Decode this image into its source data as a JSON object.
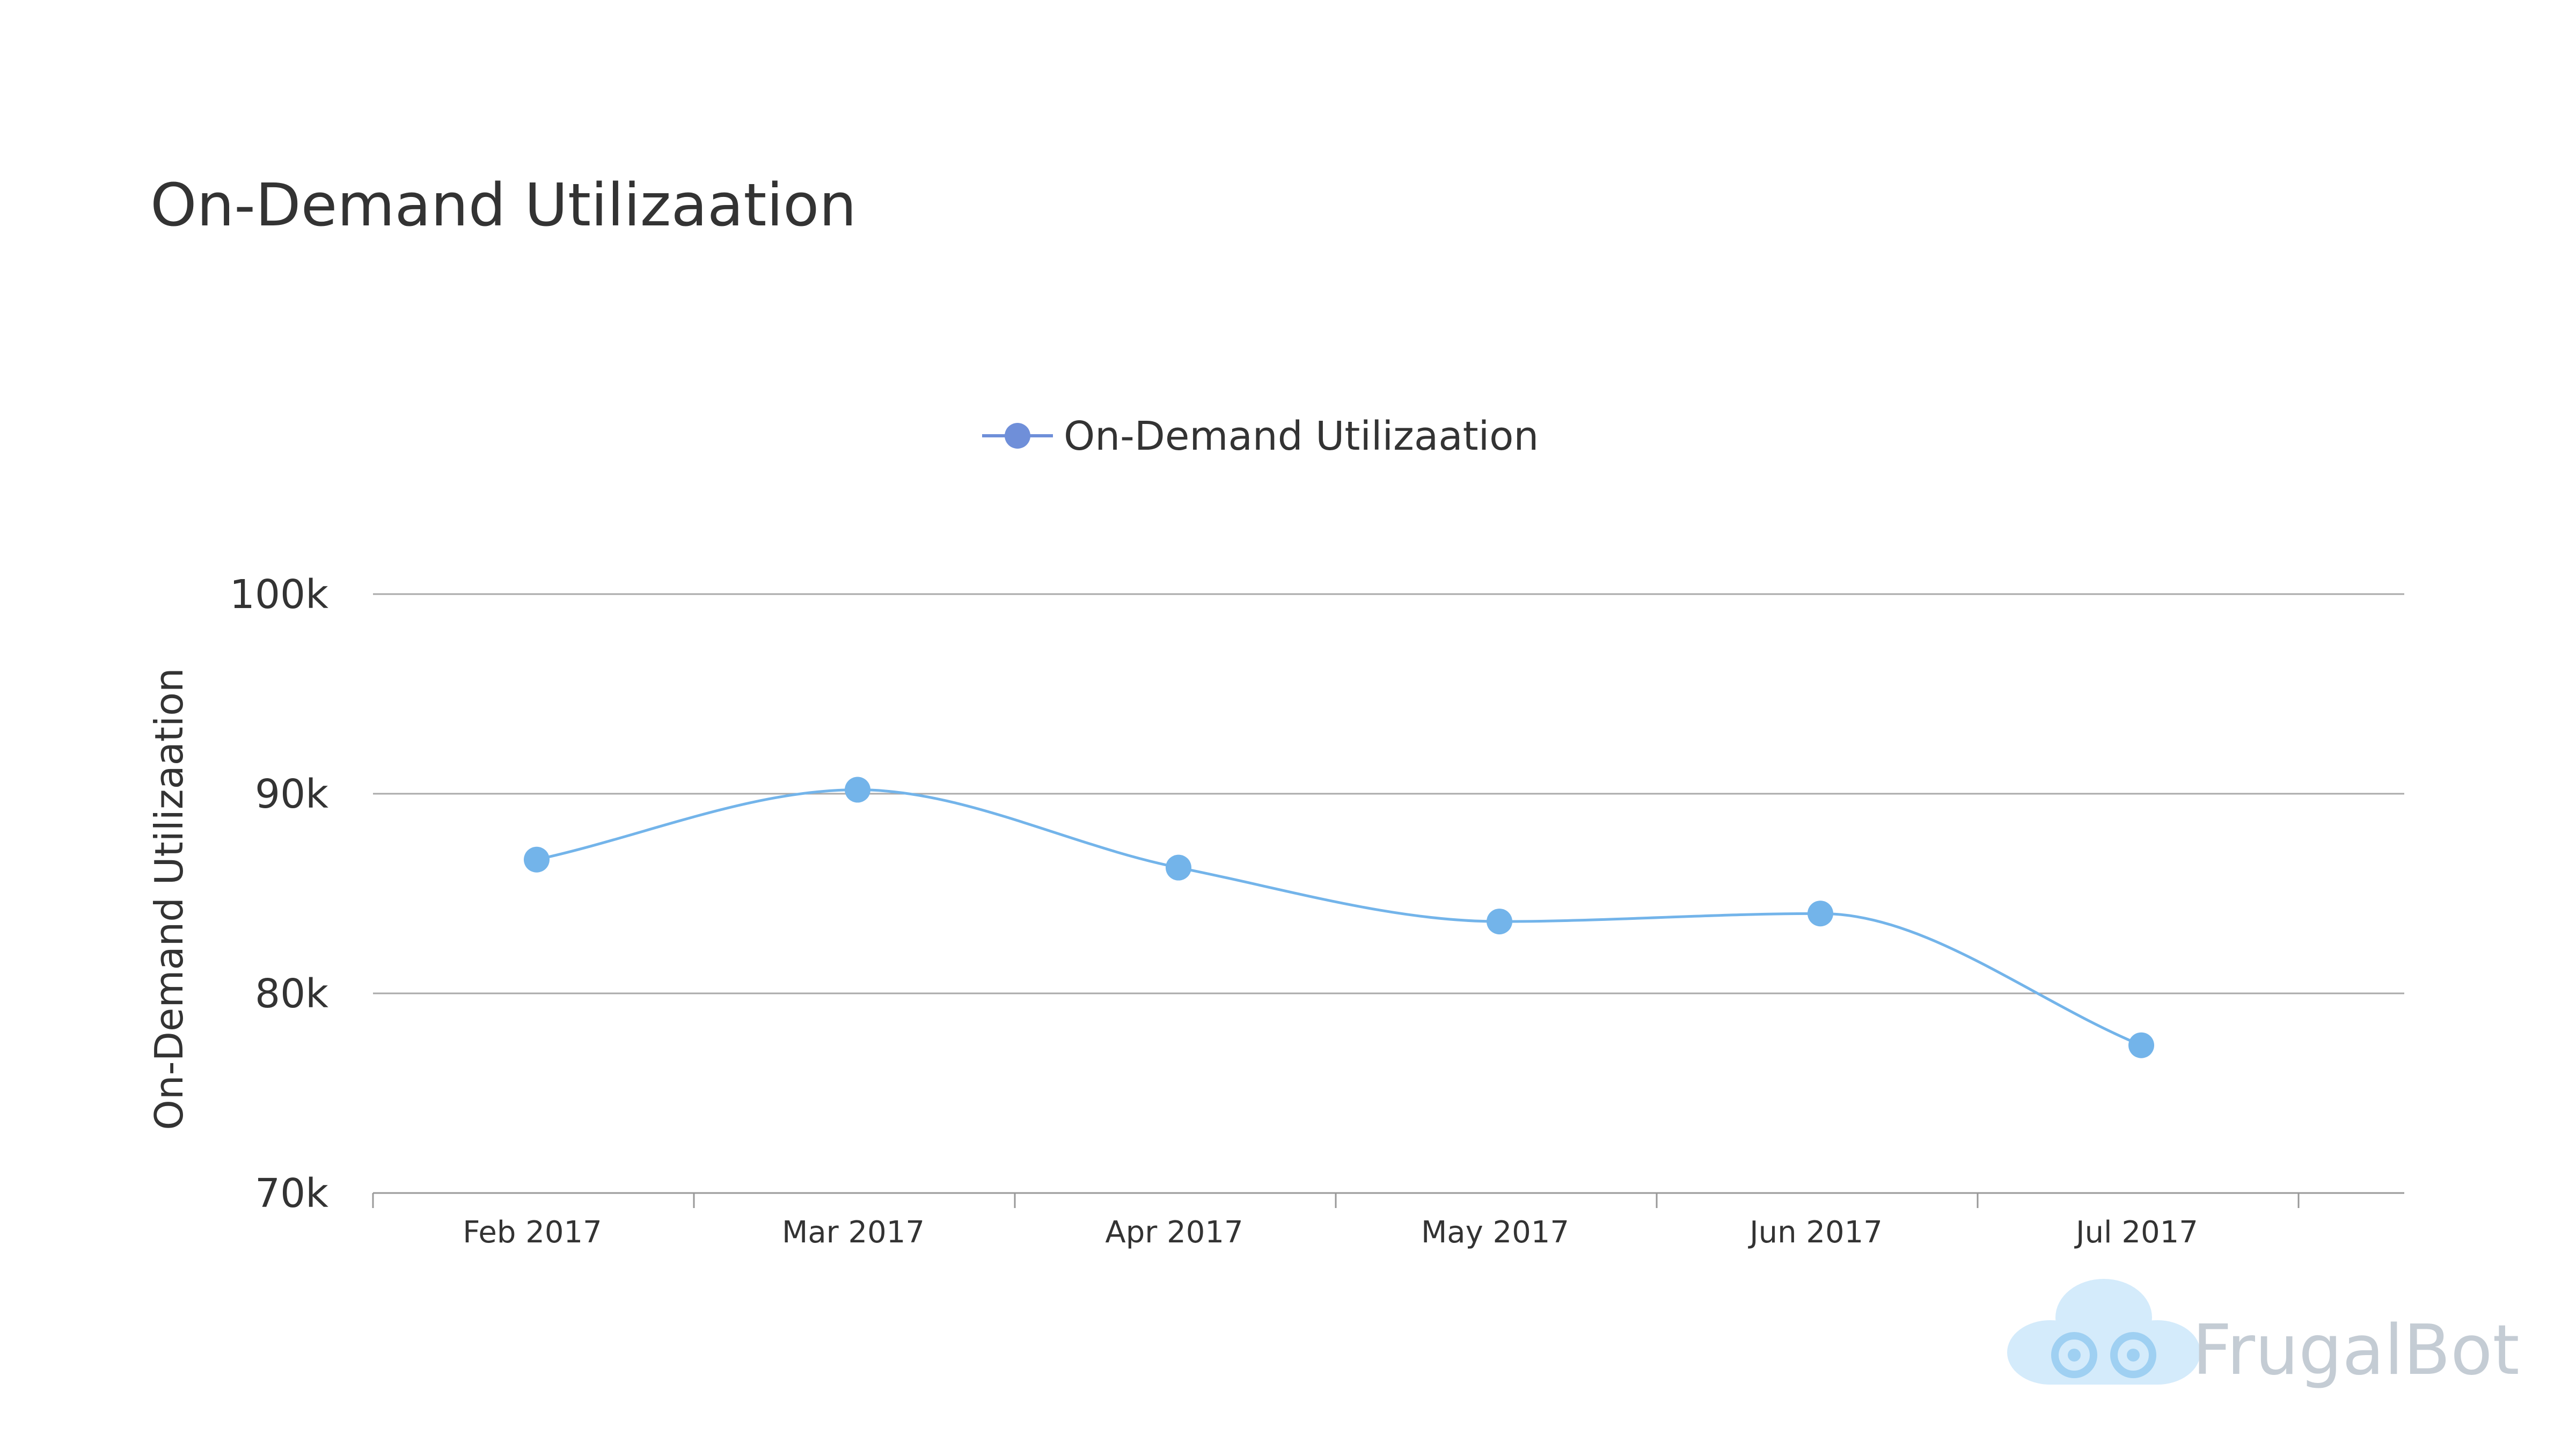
{
  "chart_data": {
    "type": "line",
    "title": "On-Demand Utilizaation",
    "xlabel": "",
    "ylabel": "On-Demand Utilizaation",
    "categories": [
      "Feb 2017",
      "Mar 2017",
      "Apr 2017",
      "May 2017",
      "Jun 2017",
      "Jul 2017"
    ],
    "series": [
      {
        "name": "On-Demand Utilizaation",
        "values": [
          86700,
          90200,
          86300,
          83600,
          84000,
          77400
        ]
      }
    ],
    "ylim": [
      70000,
      100000
    ],
    "yticks": [
      {
        "value": 70000,
        "label": "70k"
      },
      {
        "value": 80000,
        "label": "80k"
      },
      {
        "value": 90000,
        "label": "90k"
      },
      {
        "value": 100000,
        "label": "100k"
      }
    ],
    "grid": true,
    "legend": "top-center",
    "smooth": true,
    "colors": {
      "line": "#73b4ea",
      "marker": "#73b4ea",
      "legend_marker": "#6f8fd9",
      "legend_line": "#6f8fd9",
      "grid": "#aaaaaa",
      "axis": "#999999",
      "text": "#333333"
    }
  },
  "watermark": {
    "text": "FrugalBot",
    "icon": "cloud-robot-logo-icon",
    "color": "#c4ccd4",
    "icon_color": "#cfe6f7"
  }
}
